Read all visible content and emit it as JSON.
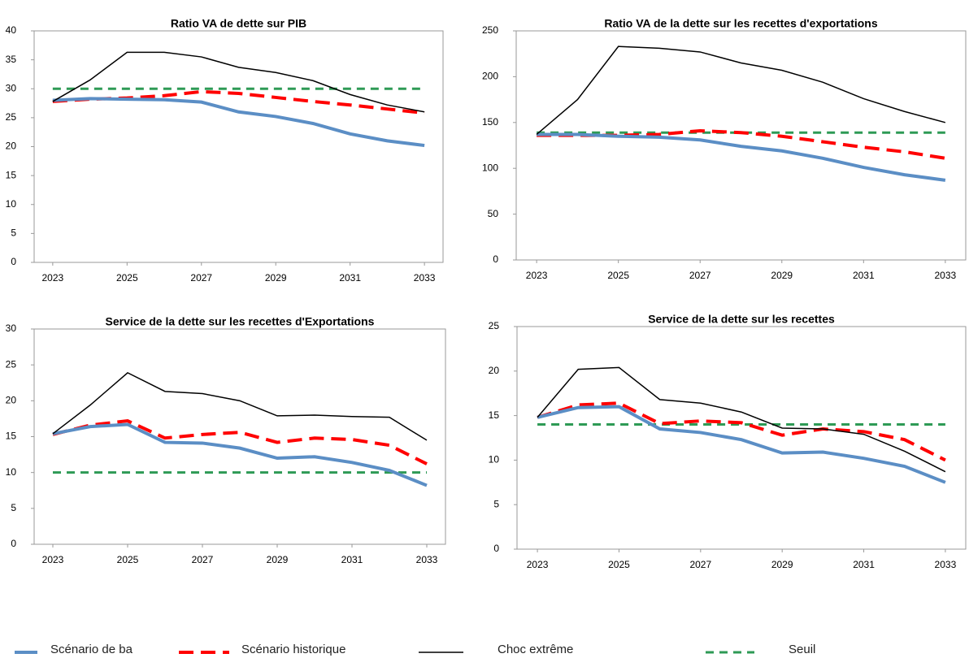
{
  "chart_data": [
    {
      "type": "line",
      "title": "Ratio VA de dette sur PIB",
      "x": [
        2023,
        2024,
        2025,
        2026,
        2027,
        2028,
        2029,
        2030,
        2031,
        2032,
        2033
      ],
      "xlim": [
        2022.5,
        2033.5
      ],
      "xticks": [
        2023,
        2025,
        2027,
        2029,
        2031,
        2033
      ],
      "ylim": [
        0,
        40
      ],
      "yticks": [
        0,
        5,
        10,
        15,
        20,
        25,
        30,
        35,
        40
      ],
      "series": [
        {
          "color": "#5b8ec5",
          "width": 4,
          "dash": "none",
          "values": [
            28,
            28.3,
            28.2,
            28.1,
            27.7,
            26,
            25.2,
            24,
            22.2,
            21,
            20.2
          ]
        },
        {
          "color": "#ff0000",
          "width": 4,
          "dash": "18 9",
          "values": [
            27.8,
            28.2,
            28.4,
            28.8,
            29.5,
            29.2,
            28.5,
            27.8,
            27.2,
            26.5,
            25.8
          ]
        },
        {
          "color": "#000000",
          "width": 1.5,
          "dash": "none",
          "values": [
            27.8,
            31.5,
            36.3,
            36.3,
            35.5,
            33.7,
            32.8,
            31.4,
            29,
            27.2,
            26
          ]
        },
        {
          "color": "#2e9a55",
          "width": 3,
          "dash": "10 7",
          "values": [
            30,
            30,
            30,
            30,
            30,
            30,
            30,
            30,
            30,
            30,
            30
          ]
        }
      ]
    },
    {
      "type": "line",
      "title": "Ratio VA de la dette sur les recettes d'exportations",
      "x": [
        2023,
        2024,
        2025,
        2026,
        2027,
        2028,
        2029,
        2030,
        2031,
        2032,
        2033
      ],
      "xlim": [
        2022.5,
        2033.5
      ],
      "xticks": [
        2023,
        2025,
        2027,
        2029,
        2031,
        2033
      ],
      "ylim": [
        0,
        250
      ],
      "yticks": [
        0,
        50,
        100,
        150,
        200,
        250
      ],
      "series": [
        {
          "color": "#5b8ec5",
          "width": 4,
          "dash": "none",
          "values": [
            137,
            137,
            135,
            134,
            131,
            124,
            119,
            111,
            101,
            93,
            87
          ]
        },
        {
          "color": "#ff0000",
          "width": 4,
          "dash": "18 9",
          "values": [
            136,
            136,
            136,
            137,
            141,
            139,
            135,
            129,
            123,
            118,
            111
          ]
        },
        {
          "color": "#000000",
          "width": 1.5,
          "dash": "none",
          "values": [
            137,
            175,
            233,
            231,
            227,
            215,
            207,
            194,
            176,
            162,
            150
          ]
        },
        {
          "color": "#2e9a55",
          "width": 3,
          "dash": "10 7",
          "values": [
            139,
            139,
            139,
            139,
            139,
            139,
            139,
            139,
            139,
            139,
            139
          ]
        }
      ]
    },
    {
      "type": "line",
      "title": "Service de la dette sur les recettes d'Exportations",
      "x": [
        2023,
        2024,
        2025,
        2026,
        2027,
        2028,
        2029,
        2030,
        2031,
        2032,
        2033
      ],
      "xlim": [
        2022.5,
        2033.5
      ],
      "xticks": [
        2023,
        2025,
        2027,
        2029,
        2031,
        2033
      ],
      "ylim": [
        0,
        30
      ],
      "yticks": [
        0,
        5,
        10,
        15,
        20,
        25,
        30
      ],
      "series": [
        {
          "color": "#5b8ec5",
          "width": 4,
          "dash": "none",
          "values": [
            15.4,
            16.4,
            16.7,
            14.2,
            14.1,
            13.4,
            12,
            12.2,
            11.4,
            10.3,
            8.2
          ]
        },
        {
          "color": "#ff0000",
          "width": 4,
          "dash": "18 9",
          "values": [
            15.3,
            16.6,
            17.2,
            14.8,
            15.3,
            15.6,
            14.2,
            14.8,
            14.6,
            13.8,
            11.2
          ]
        },
        {
          "color": "#000000",
          "width": 1.5,
          "dash": "none",
          "values": [
            15.4,
            19.4,
            23.9,
            21.3,
            21,
            20,
            17.9,
            18,
            17.8,
            17.7,
            14.5
          ]
        },
        {
          "color": "#2e9a55",
          "width": 3,
          "dash": "10 7",
          "values": [
            10,
            10,
            10,
            10,
            10,
            10,
            10,
            10,
            10,
            10,
            10
          ]
        }
      ]
    },
    {
      "type": "line",
      "title": "Service de la dette sur les recettes",
      "x": [
        2023,
        2024,
        2025,
        2026,
        2027,
        2028,
        2029,
        2030,
        2031,
        2032,
        2033
      ],
      "xlim": [
        2022.5,
        2033.5
      ],
      "xticks": [
        2023,
        2025,
        2027,
        2029,
        2031,
        2033
      ],
      "ylim": [
        0,
        25
      ],
      "yticks": [
        0,
        5,
        10,
        15,
        20,
        25
      ],
      "series": [
        {
          "color": "#5b8ec5",
          "width": 4,
          "dash": "none",
          "values": [
            14.8,
            15.9,
            16,
            13.5,
            13.1,
            12.3,
            10.8,
            10.9,
            10.2,
            9.3,
            7.5
          ]
        },
        {
          "color": "#ff0000",
          "width": 4,
          "dash": "18 9",
          "values": [
            14.8,
            16.2,
            16.4,
            14.1,
            14.4,
            14.2,
            12.8,
            13.5,
            13.2,
            12.3,
            10
          ]
        },
        {
          "color": "#000000",
          "width": 1.5,
          "dash": "none",
          "values": [
            14.8,
            20.2,
            20.4,
            16.8,
            16.4,
            15.4,
            13.6,
            13.5,
            12.9,
            11,
            8.7
          ]
        },
        {
          "color": "#2e9a55",
          "width": 3,
          "dash": "10 7",
          "values": [
            14,
            14,
            14,
            14,
            14,
            14,
            14,
            14,
            14,
            14,
            14
          ]
        }
      ]
    }
  ],
  "legend": {
    "items": [
      {
        "name": "Scénario de ba",
        "color": "#5b8ec5",
        "width": 4,
        "dash": "none"
      },
      {
        "name": "Scénario historique",
        "color": "#ff0000",
        "width": 4,
        "dash": "18 9"
      },
      {
        "name": "Choc extrême",
        "color": "#000000",
        "width": 1.5,
        "dash": "none"
      },
      {
        "name": "Seuil",
        "color": "#2e9a55",
        "width": 3,
        "dash": "10 7"
      }
    ]
  }
}
